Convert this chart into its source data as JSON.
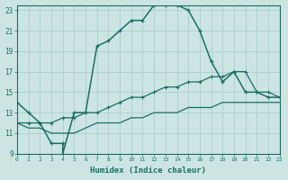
{
  "xlabel": "Humidex (Indice chaleur)",
  "background_color": "#cce5e3",
  "grid_color": "#aacfcd",
  "line_color": "#1a6e64",
  "x_min": 0,
  "x_max": 23,
  "y_min": 9,
  "y_max": 23.5,
  "series1_x": [
    0,
    1,
    2,
    3,
    4,
    4,
    5,
    6,
    7,
    8,
    9,
    10,
    11,
    12,
    13,
    14,
    15,
    16,
    17,
    18,
    19,
    20,
    21,
    22,
    23
  ],
  "series1_y": [
    14,
    13,
    12,
    10,
    10,
    9,
    13,
    13,
    19.5,
    20,
    21,
    22,
    22,
    23.5,
    23.5,
    23.5,
    23,
    21,
    18,
    16,
    17,
    15,
    15,
    14.5,
    14.5
  ],
  "series2_x": [
    0,
    1,
    2,
    3,
    4,
    5,
    6,
    7,
    8,
    9,
    10,
    11,
    12,
    13,
    14,
    15,
    16,
    17,
    18,
    19,
    20,
    21,
    22,
    23
  ],
  "series2_y": [
    12,
    12,
    12,
    12,
    12.5,
    12.5,
    13,
    13,
    13.5,
    14,
    14.5,
    14.5,
    15,
    15.5,
    15.5,
    16,
    16,
    16.5,
    16.5,
    17,
    17,
    15,
    15,
    14.5
  ],
  "series3_x": [
    0,
    1,
    2,
    3,
    4,
    5,
    6,
    7,
    8,
    9,
    10,
    11,
    12,
    13,
    14,
    15,
    16,
    17,
    18,
    19,
    20,
    21,
    22,
    23
  ],
  "series3_y": [
    12,
    11.5,
    11.5,
    11,
    11,
    11,
    11.5,
    12,
    12,
    12,
    12.5,
    12.5,
    13,
    13,
    13,
    13.5,
    13.5,
    13.5,
    14,
    14,
    14,
    14,
    14,
    14
  ],
  "ytick_labels": [
    "9",
    "11",
    "13",
    "15",
    "17",
    "19",
    "21",
    "23"
  ],
  "ytick_values": [
    9,
    11,
    13,
    15,
    17,
    19,
    21,
    23
  ]
}
